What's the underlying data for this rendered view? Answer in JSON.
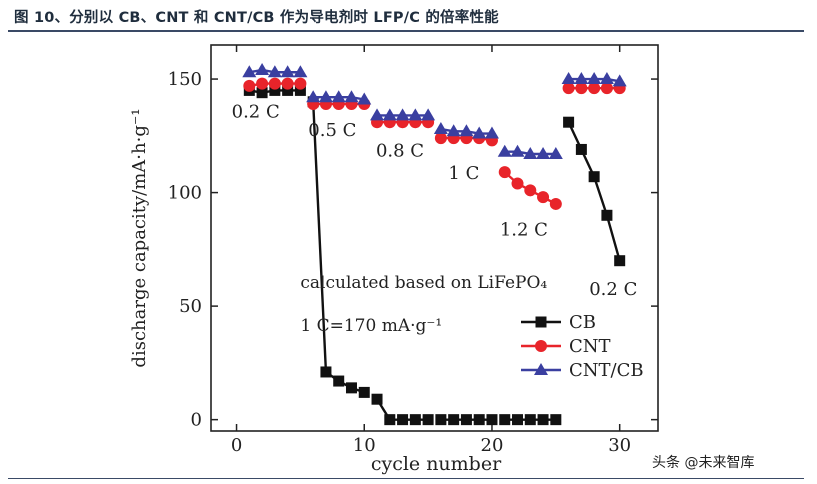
{
  "figure_title": "图 10、分别以 CB、CNT 和 CNT/CB 作为导电剂时 LFP/C 的倍率性能",
  "watermark": "头条 @未来智库",
  "colors": {
    "CB": "#111111",
    "CNT": "#e8242a",
    "CNT/CB": "#3a3fa0",
    "rule": "#3a4a66"
  },
  "chart_data": {
    "type": "scatter",
    "xlabel": "cycle number",
    "ylabel": "discharge capacity/mA·h·g⁻¹",
    "xlim": [
      -2,
      33
    ],
    "ylim": [
      -5,
      165
    ],
    "xticks": [
      0,
      10,
      20,
      30
    ],
    "yticks": [
      0,
      50,
      100,
      150
    ],
    "grid": false,
    "legend_position": "bottom-right",
    "series": [
      {
        "name": "CB",
        "marker": "square",
        "color": "#111111",
        "x": [
          1,
          2,
          3,
          4,
          5,
          6,
          7,
          8,
          9,
          10,
          11,
          12,
          13,
          14,
          15,
          16,
          17,
          18,
          19,
          20,
          21,
          22,
          23,
          24,
          25,
          26,
          27,
          28,
          29,
          30
        ],
        "y": [
          145,
          144,
          145,
          145,
          145,
          140,
          21,
          17,
          14,
          12,
          9,
          0,
          0,
          0,
          0,
          0,
          0,
          0,
          0,
          0,
          0,
          0,
          0,
          0,
          0,
          131,
          119,
          107,
          90,
          70
        ]
      },
      {
        "name": "CNT",
        "marker": "circle",
        "color": "#e8242a",
        "x": [
          1,
          2,
          3,
          4,
          5,
          6,
          7,
          8,
          9,
          10,
          11,
          12,
          13,
          14,
          15,
          16,
          17,
          18,
          19,
          20,
          21,
          22,
          23,
          24,
          25,
          26,
          27,
          28,
          29,
          30
        ],
        "y": [
          147,
          148,
          148,
          148,
          148,
          139,
          139,
          139,
          139,
          139,
          131,
          131,
          131,
          131,
          131,
          124,
          124,
          124,
          124,
          123,
          109,
          104,
          101,
          98,
          95,
          146,
          146,
          146,
          146,
          146
        ]
      },
      {
        "name": "CNT/CB",
        "marker": "triangle",
        "color": "#3a3fa0",
        "x": [
          1,
          2,
          3,
          4,
          5,
          6,
          7,
          8,
          9,
          10,
          11,
          12,
          13,
          14,
          15,
          16,
          17,
          18,
          19,
          20,
          21,
          22,
          23,
          24,
          25,
          26,
          27,
          28,
          29,
          30
        ],
        "y": [
          153,
          154,
          153,
          153,
          153,
          142,
          142,
          142,
          142,
          141,
          134,
          134,
          134,
          134,
          134,
          128,
          127,
          127,
          126,
          126,
          118,
          118,
          117,
          117,
          117,
          150,
          150,
          150,
          150,
          149
        ]
      }
    ],
    "rate_labels": [
      {
        "text": "0.2 C",
        "x": 1.5,
        "y": 133
      },
      {
        "text": "0.5 C",
        "x": 7.5,
        "y": 125
      },
      {
        "text": "0.8 C",
        "x": 12.8,
        "y": 116
      },
      {
        "text": "1 C",
        "x": 17.8,
        "y": 106
      },
      {
        "text": "1.2 C",
        "x": 22.5,
        "y": 81
      },
      {
        "text": "0.2 C",
        "x": 29.5,
        "y": 55
      }
    ],
    "annotations": [
      {
        "text": "calculated based on LiFePO₄",
        "x": 5,
        "y": 58
      },
      {
        "text": "1 C=170 mA·g⁻¹",
        "x": 5,
        "y": 39
      }
    ]
  }
}
